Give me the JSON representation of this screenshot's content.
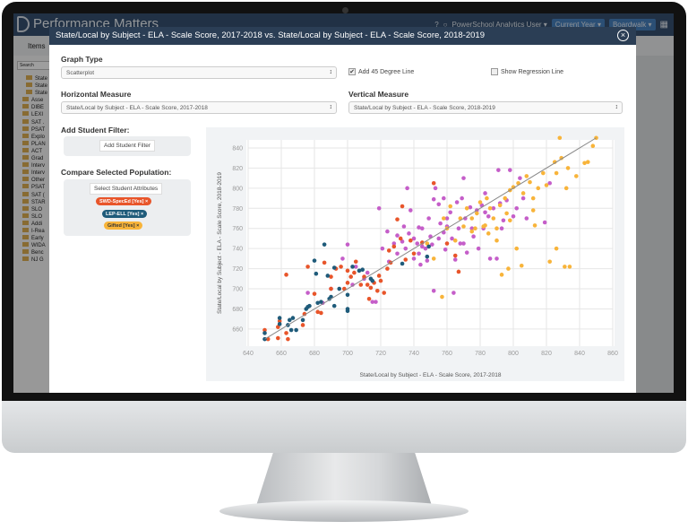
{
  "app": {
    "title": "Performance Matters",
    "user_menu": "PowerSchool Analytics User ▾",
    "year_button": "Current Year ▾",
    "district_button": "Boardwalk ▾",
    "help_icon": "question-circle-icon",
    "search_icon": "search-icon",
    "apps_icon": "grid-icon"
  },
  "itemsbar": {
    "label": "Items"
  },
  "sidebar": {
    "search_placeholder": "Search",
    "items": [
      "State",
      "State",
      "State",
      "Asse",
      "DIBE",
      "LEXI",
      "SAT .",
      "PSAT",
      "Explo",
      "PLAN",
      "ACT",
      "Grad",
      "Interv",
      "Interv",
      "Other",
      "PSAT",
      "SAT (",
      "STAR",
      "SLO",
      "SLO",
      "Addi",
      "I-Rea",
      "Early",
      "WIDA",
      "Benc",
      "NJ G"
    ]
  },
  "modal": {
    "title": "State/Local by Subject - ELA - Scale Score, 2017-2018 vs. State/Local by Subject - ELA - Scale Score, 2018-2019",
    "graph_type_label": "Graph Type",
    "graph_type_value": "Scatterplot",
    "add45_label": "Add 45 Degree Line",
    "add45_checked": true,
    "regression_label": "Show Regression Line",
    "regression_checked": false,
    "horizontal_label": "Horizontal Measure",
    "horizontal_value": "State/Local by Subject - ELA - Scale Score, 2017-2018",
    "vertical_label": "Vertical Measure",
    "vertical_value": "State/Local by Subject - ELA - Scale Score, 2018-2019",
    "filter_label": "Add Student Filter:",
    "filter_button": "Add Student Filter",
    "compare_label": "Compare Selected Population:",
    "attributes_button": "Select Student Attributes",
    "tags": [
      {
        "label": "SWD-SpecEd [Yes] ×",
        "color": "#e8552a"
      },
      {
        "label": "LEP-ELL [Yes] ×",
        "color": "#1f5b7a"
      },
      {
        "label": "Gifted [Yes] ×",
        "color": "#f8b43a"
      }
    ]
  },
  "chart_data": {
    "type": "scatter",
    "xlabel": "State/Local by Subject - ELA - Scale Score, 2017-2018",
    "ylabel": "State/Local by Subject - ELA - Scale Score, 2018-2019",
    "xlim": [
      640,
      860
    ],
    "ylim": [
      643,
      848
    ],
    "xticks": [
      640,
      660,
      680,
      700,
      720,
      740,
      760,
      780,
      800,
      820,
      840,
      860
    ],
    "yticks": [
      660,
      680,
      700,
      720,
      740,
      760,
      780,
      800,
      820,
      840
    ],
    "grid": true,
    "reference_line": "45-degree",
    "reference_line_color": "#888888",
    "series": [
      {
        "color": "#c55ec9",
        "points": [
          [
            676,
            696
          ],
          [
            685,
            686
          ],
          [
            690,
            700
          ],
          [
            697,
            730
          ],
          [
            700,
            744
          ],
          [
            703,
            704
          ],
          [
            710,
            710
          ],
          [
            715,
            687
          ],
          [
            717,
            687
          ],
          [
            719,
            780
          ],
          [
            721,
            740
          ],
          [
            724,
            757
          ],
          [
            725,
            727
          ],
          [
            728,
            745
          ],
          [
            730,
            753
          ],
          [
            733,
            747
          ],
          [
            734,
            762
          ],
          [
            736,
            800
          ],
          [
            737,
            755
          ],
          [
            738,
            778
          ],
          [
            740,
            730
          ],
          [
            742,
            745
          ],
          [
            743,
            761
          ],
          [
            744,
            724
          ],
          [
            745,
            742
          ],
          [
            747,
            740
          ],
          [
            749,
            770
          ],
          [
            750,
            752
          ],
          [
            752,
            789
          ],
          [
            752,
            698
          ],
          [
            753,
            800
          ],
          [
            755,
            784
          ],
          [
            756,
            765
          ],
          [
            758,
            756
          ],
          [
            759,
            739
          ],
          [
            760,
            770
          ],
          [
            762,
            776
          ],
          [
            763,
            750
          ],
          [
            764,
            696
          ],
          [
            765,
            729
          ],
          [
            766,
            786
          ],
          [
            767,
            760
          ],
          [
            768,
            745
          ],
          [
            769,
            790
          ],
          [
            770,
            810
          ],
          [
            771,
            770
          ],
          [
            772,
            736
          ],
          [
            774,
            781
          ],
          [
            775,
            760
          ],
          [
            776,
            752
          ],
          [
            778,
            778
          ],
          [
            779,
            740
          ],
          [
            781,
            783
          ],
          [
            782,
            760
          ],
          [
            783,
            795
          ],
          [
            785,
            772
          ],
          [
            786,
            730
          ],
          [
            788,
            780
          ],
          [
            790,
            730
          ],
          [
            791,
            818
          ],
          [
            792,
            785
          ],
          [
            794,
            768
          ],
          [
            796,
            788
          ],
          [
            798,
            818
          ],
          [
            800,
            772
          ],
          [
            802,
            780
          ],
          [
            804,
            810
          ],
          [
            806,
            790
          ],
          [
            808,
            770
          ],
          [
            819,
            766
          ],
          [
            822,
            805
          ],
          [
            730,
            735
          ],
          [
            735,
            740
          ],
          [
            740,
            750
          ],
          [
            745,
            760
          ],
          [
            748,
            728
          ],
          [
            755,
            750
          ],
          [
            760,
            762
          ],
          [
            705,
            722
          ],
          [
            712,
            716
          ],
          [
            758,
            790
          ],
          [
            770,
            745
          ],
          [
            783,
            776
          ],
          [
            793,
            760
          ],
          [
            743,
            735
          ],
          [
            751,
            744
          ]
        ]
      },
      {
        "color": "#f8b43a",
        "points": [
          [
            748,
            745
          ],
          [
            752,
            730
          ],
          [
            757,
            692
          ],
          [
            758,
            770
          ],
          [
            760,
            760
          ],
          [
            762,
            782
          ],
          [
            765,
            748
          ],
          [
            768,
            770
          ],
          [
            770,
            762
          ],
          [
            772,
            780
          ],
          [
            775,
            770
          ],
          [
            777,
            760
          ],
          [
            778,
            775
          ],
          [
            780,
            786
          ],
          [
            782,
            762
          ],
          [
            784,
            790
          ],
          [
            785,
            755
          ],
          [
            786,
            780
          ],
          [
            788,
            770
          ],
          [
            790,
            760
          ],
          [
            792,
            783
          ],
          [
            793,
            714
          ],
          [
            795,
            790
          ],
          [
            796,
            775
          ],
          [
            797,
            720
          ],
          [
            798,
            798
          ],
          [
            800,
            801
          ],
          [
            802,
            740
          ],
          [
            803,
            805
          ],
          [
            805,
            723
          ],
          [
            806,
            795
          ],
          [
            808,
            812
          ],
          [
            810,
            806
          ],
          [
            812,
            778
          ],
          [
            813,
            763
          ],
          [
            815,
            800
          ],
          [
            818,
            815
          ],
          [
            820,
            803
          ],
          [
            822,
            727
          ],
          [
            825,
            826
          ],
          [
            826,
            740
          ],
          [
            828,
            850
          ],
          [
            829,
            830
          ],
          [
            831,
            722
          ],
          [
            832,
            800
          ],
          [
            833,
            820
          ],
          [
            834,
            722
          ],
          [
            838,
            812
          ],
          [
            843,
            825
          ],
          [
            845,
            826
          ],
          [
            848,
            842
          ],
          [
            850,
            850
          ],
          [
            790,
            748
          ],
          [
            775,
            757
          ],
          [
            783,
            763
          ],
          [
            798,
            768
          ],
          [
            812,
            790
          ],
          [
            826,
            815
          ]
        ]
      },
      {
        "color": "#e8552a",
        "points": [
          [
            650,
            659
          ],
          [
            652,
            650
          ],
          [
            658,
            651
          ],
          [
            658,
            662
          ],
          [
            659,
            668
          ],
          [
            663,
            714
          ],
          [
            663,
            656
          ],
          [
            664,
            650
          ],
          [
            673,
            664
          ],
          [
            674,
            675
          ],
          [
            676,
            722
          ],
          [
            680,
            695
          ],
          [
            682,
            677
          ],
          [
            684,
            676
          ],
          [
            686,
            726
          ],
          [
            690,
            712
          ],
          [
            693,
            720
          ],
          [
            696,
            722
          ],
          [
            698,
            700
          ],
          [
            700,
            718
          ],
          [
            702,
            712
          ],
          [
            705,
            727
          ],
          [
            708,
            704
          ],
          [
            710,
            712
          ],
          [
            712,
            704
          ],
          [
            714,
            701
          ],
          [
            716,
            706
          ],
          [
            718,
            698
          ],
          [
            720,
            708
          ],
          [
            722,
            696
          ],
          [
            724,
            720
          ],
          [
            725,
            738
          ],
          [
            728,
            742
          ],
          [
            730,
            769
          ],
          [
            732,
            750
          ],
          [
            735,
            729
          ],
          [
            738,
            748
          ],
          [
            740,
            735
          ],
          [
            745,
            746
          ],
          [
            752,
            805
          ],
          [
            760,
            745
          ],
          [
            765,
            733
          ],
          [
            767,
            717
          ],
          [
            700,
            706
          ],
          [
            704,
            716
          ],
          [
            719,
            713
          ],
          [
            726,
            726
          ],
          [
            733,
            782
          ],
          [
            690,
            700
          ],
          [
            713,
            690
          ]
        ]
      },
      {
        "color": "#1f5b7a",
        "points": [
          [
            650,
            650
          ],
          [
            650,
            656
          ],
          [
            659,
            665
          ],
          [
            659,
            671
          ],
          [
            664,
            664
          ],
          [
            665,
            669
          ],
          [
            666,
            659
          ],
          [
            667,
            671
          ],
          [
            669,
            659
          ],
          [
            673,
            669
          ],
          [
            675,
            680
          ],
          [
            676,
            682
          ],
          [
            677,
            683
          ],
          [
            680,
            728
          ],
          [
            681,
            715
          ],
          [
            682,
            686
          ],
          [
            684,
            687
          ],
          [
            686,
            744
          ],
          [
            688,
            713
          ],
          [
            689,
            690
          ],
          [
            690,
            692
          ],
          [
            692,
            721
          ],
          [
            692,
            683
          ],
          [
            695,
            700
          ],
          [
            700,
            678
          ],
          [
            700,
            680
          ],
          [
            700,
            694
          ],
          [
            703,
            722
          ],
          [
            707,
            718
          ],
          [
            709,
            719
          ],
          [
            714,
            710
          ],
          [
            715,
            708
          ],
          [
            733,
            725
          ],
          [
            748,
            732
          ],
          [
            749,
            742
          ]
        ]
      }
    ]
  }
}
